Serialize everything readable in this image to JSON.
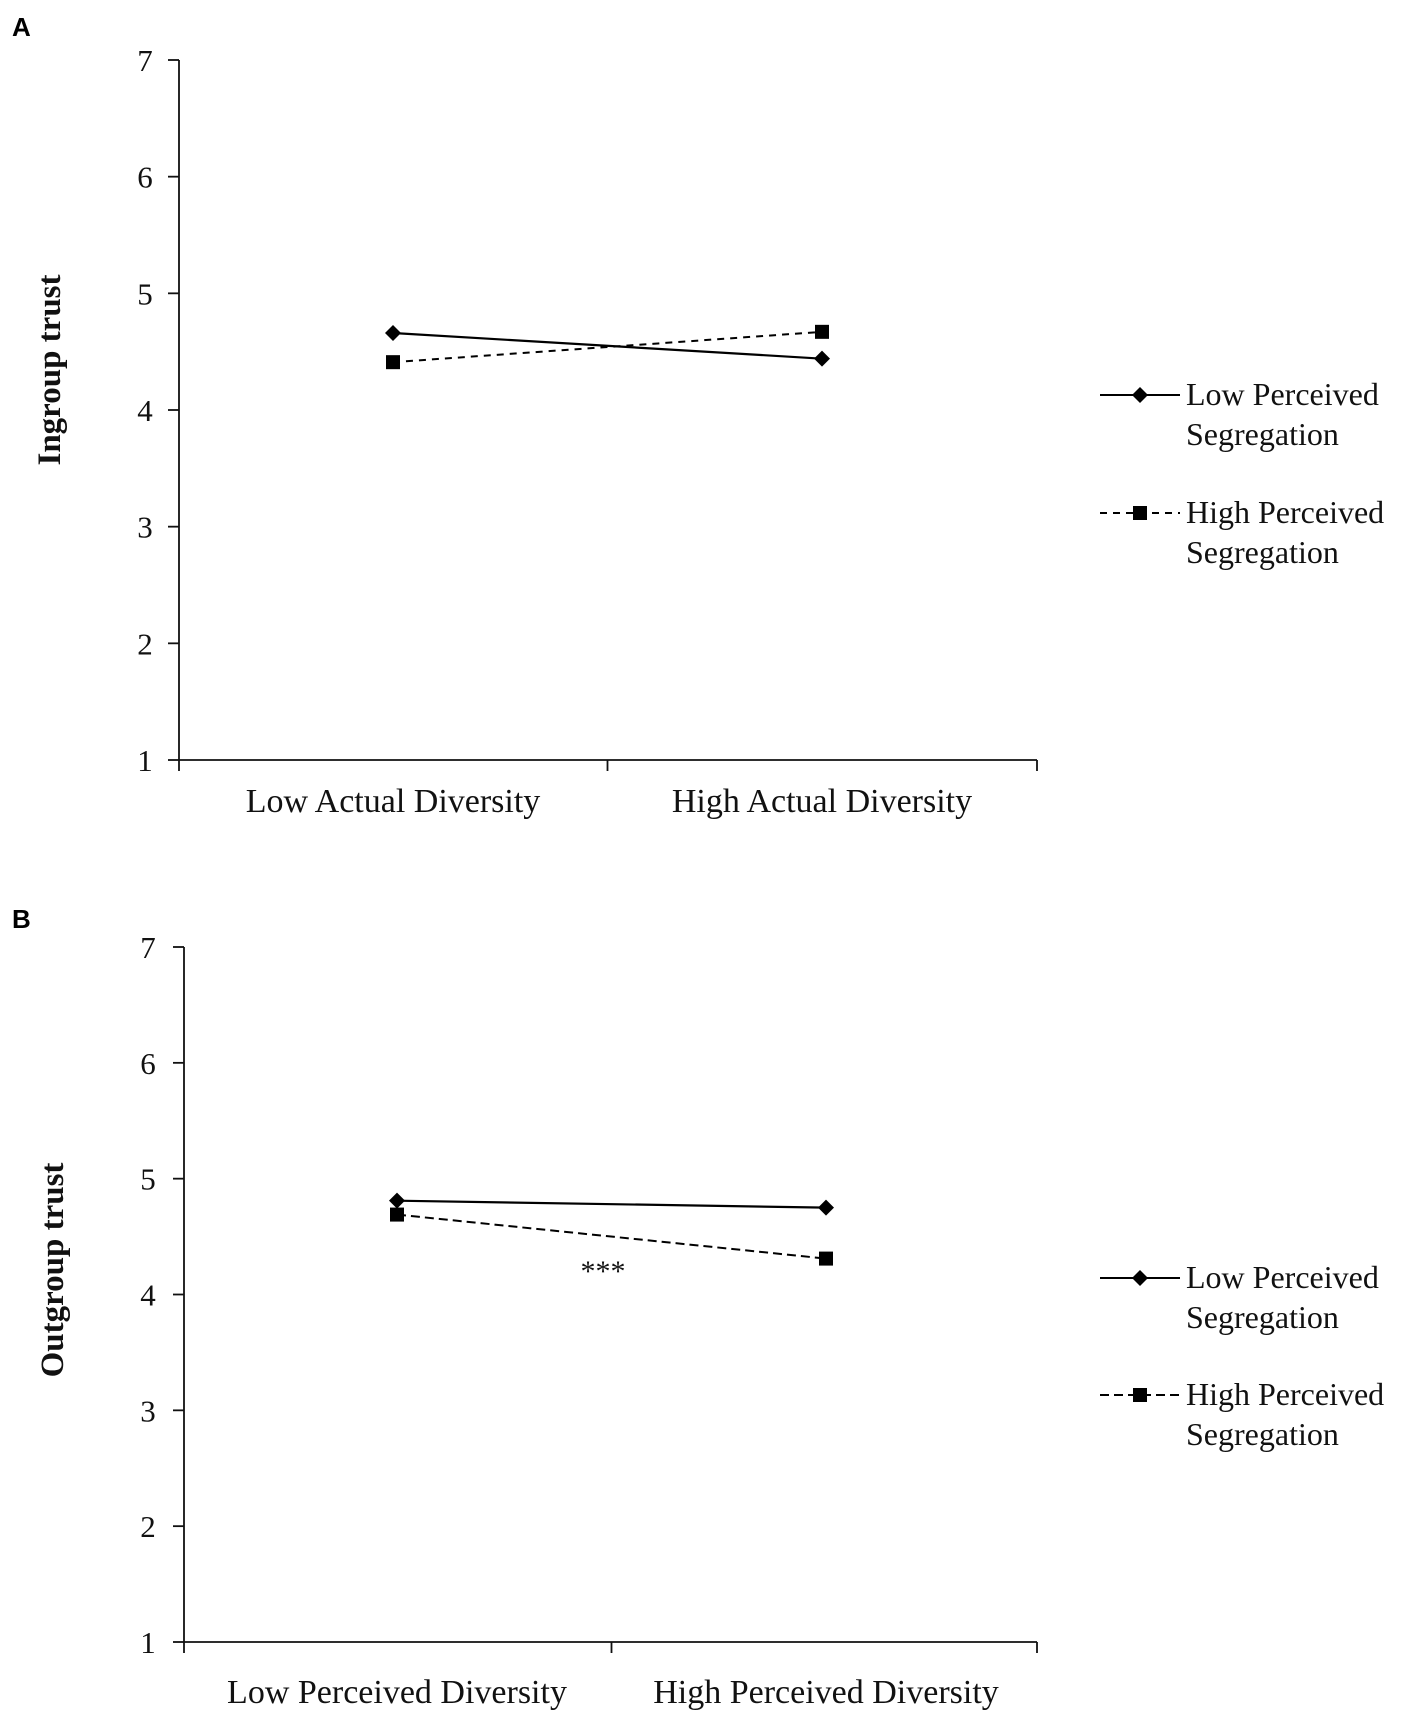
{
  "chart_data": [
    {
      "type": "line",
      "panel_label": "A",
      "ylabel": "Ingroup trust",
      "xlabel": "",
      "ylim": [
        1,
        7
      ],
      "yticks": [
        "1",
        "2",
        "3",
        "4",
        "5",
        "6",
        "7"
      ],
      "categories": [
        "Low Actual Diversity",
        "High Actual Diversity"
      ],
      "series": [
        {
          "name_line1": "Low Perceived",
          "name_line2": "Segregation",
          "values": [
            4.66,
            4.44
          ],
          "style": "solid",
          "marker": "diamond",
          "color": "#000000"
        },
        {
          "name_line1": "High Perceived",
          "name_line2": "Segregation",
          "values": [
            4.41,
            4.67
          ],
          "style": "dashed",
          "marker": "square",
          "color": "#000000"
        }
      ],
      "annotation": "",
      "grid": false,
      "legend_position": "right"
    },
    {
      "type": "line",
      "panel_label": "B",
      "ylabel": "Outgroup trust",
      "xlabel": "",
      "ylim": [
        1,
        7
      ],
      "yticks": [
        "1",
        "2",
        "3",
        "4",
        "5",
        "6",
        "7"
      ],
      "categories": [
        "Low Perceived Diversity",
        "High Perceived Diversity"
      ],
      "series": [
        {
          "name_line1": "Low Perceived",
          "name_line2": "Segregation",
          "values": [
            4.81,
            4.75
          ],
          "style": "solid",
          "marker": "diamond",
          "color": "#000000"
        },
        {
          "name_line1": "High Perceived",
          "name_line2": "Segregation",
          "values": [
            4.69,
            4.31
          ],
          "style": "dashed",
          "marker": "square",
          "color": "#000000"
        }
      ],
      "annotation": "***",
      "grid": false,
      "legend_position": "right"
    }
  ]
}
